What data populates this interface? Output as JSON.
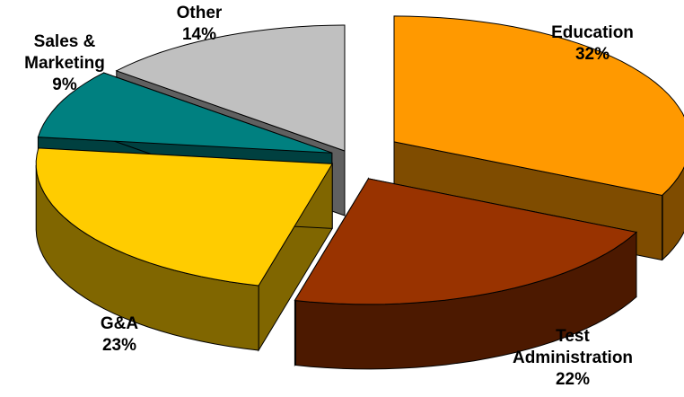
{
  "chart_data": {
    "type": "pie",
    "style": "3d-exploded",
    "title": "",
    "slices": [
      {
        "name": "Education",
        "value": 32,
        "label_lines": [
          "Education",
          "32%"
        ],
        "color": "#FF9900",
        "side_color": "#7F4C00"
      },
      {
        "name": "Test Administration",
        "value": 22,
        "label_lines": [
          "Test",
          "Administration",
          "22%"
        ],
        "color": "#993300",
        "side_color": "#4C1900"
      },
      {
        "name": "G&A",
        "value": 23,
        "label_lines": [
          "G&A",
          "23%"
        ],
        "color": "#FFCC00",
        "side_color": "#806600"
      },
      {
        "name": "Sales & Marketing",
        "value": 9,
        "label_lines": [
          "Sales &",
          "Marketing",
          "9%"
        ],
        "color": "#008080",
        "side_color": "#004040"
      },
      {
        "name": "Other",
        "value": 14,
        "label_lines": [
          "Other",
          "14%"
        ],
        "color": "#C0C0C0",
        "side_color": "#606060"
      }
    ],
    "legend": "none"
  }
}
